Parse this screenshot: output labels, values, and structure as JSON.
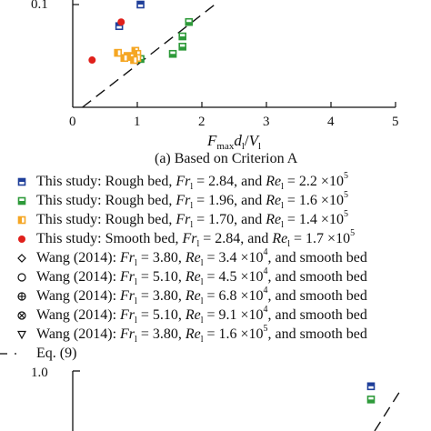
{
  "chart_data": [
    {
      "type": "scatter",
      "caption": "(a) Based on Criterion A",
      "xlabel": "F_max d_l/V_l",
      "xlim": [
        0,
        5
      ],
      "ylim": [
        0,
        0.1
      ],
      "x_ticks": [
        "0",
        "1",
        "2",
        "3",
        "4",
        "5"
      ],
      "y_ticks": [
        "0.1"
      ],
      "series": [
        {
          "name": "This study: Rough bed, Fr_l = 2.84, and Re_l = 2.2 × 10^5",
          "marker": "square-top-half",
          "color": "#1f3f9a",
          "points": [
            [
              1.05,
              0.1
            ],
            [
              0.72,
              0.079
            ]
          ]
        },
        {
          "name": "This study: Rough bed, Fr_l = 1.96, and Re_l = 1.6 × 10^5",
          "marker": "square-bottom-half",
          "color": "#2e9a3a",
          "points": [
            [
              1.8,
              0.083
            ],
            [
              1.7,
              0.069
            ],
            [
              1.7,
              0.059
            ],
            [
              1.55,
              0.052
            ],
            [
              1.05,
              0.047
            ]
          ]
        },
        {
          "name": "This study: Rough bed, Fr_l = 1.70, and Re_l = 1.4 × 10^5",
          "marker": "square-left-half",
          "color": "#f5a623",
          "points": [
            [
              0.7,
              0.053
            ],
            [
              0.85,
              0.05
            ],
            [
              0.97,
              0.055
            ],
            [
              1.0,
              0.052
            ],
            [
              0.9,
              0.049
            ],
            [
              0.8,
              0.048
            ],
            [
              1.0,
              0.048
            ],
            [
              0.95,
              0.046
            ]
          ]
        },
        {
          "name": "This study: Smooth bed, Fr_l = 2.84, and Re_l = 1.7 × 10^5",
          "marker": "circle-filled",
          "color": "#e0201b",
          "points": [
            [
              0.3,
              0.046
            ],
            [
              0.75,
              0.083
            ]
          ]
        }
      ],
      "legend_extra": [
        {
          "marker": "diamond-open",
          "text": "Wang (2014): Fr_l = 3.80, Re_l = 3.4 × 10^4, and smooth bed"
        },
        {
          "marker": "circle-open",
          "text": "Wang (2014): Fr_l = 5.10, Re_l = 4.5 × 10^4, and smooth bed"
        },
        {
          "marker": "circle-plus",
          "text": "Wang (2014): Fr_l = 3.80, Re_l = 6.8 × 10^4, and smooth bed"
        },
        {
          "marker": "circle-x",
          "text": "Wang (2014): Fr_l = 5.10, Re_l = 9.1 × 10^4, and smooth bed"
        },
        {
          "marker": "triangle-down-open",
          "text": "Wang (2014): Fr_l = 3.80, Re_l = 1.6 × 10^5, and smooth bed"
        },
        {
          "marker": "dash-line",
          "text": "Eq. (9)"
        }
      ],
      "reference_line": {
        "name": "Eq. (9)",
        "style": "dashed",
        "points": [
          [
            0.15,
            0.0
          ],
          [
            2.2,
            0.1
          ]
        ]
      }
    },
    {
      "type": "scatter",
      "ylim": [
        0,
        1.0
      ],
      "y_ticks": [
        "1.0"
      ],
      "series": [
        {
          "name": "This study: Rough bed, Fr_l = 2.84, and Re_l = 2.2 × 10^5",
          "marker": "square-top-half",
          "color": "#1f3f9a",
          "points": [
            [
              0.82,
              0.85
            ]
          ]
        },
        {
          "name": "This study: Rough bed, Fr_l = 1.96, and Re_l = 1.6 × 10^5",
          "marker": "square-bottom-half",
          "color": "#2e9a3a",
          "points": [
            [
              0.82,
              0.72
            ]
          ]
        }
      ],
      "reference_line": {
        "name": "Eq. (9)",
        "style": "dashed"
      }
    }
  ],
  "legend_labels": [
    {
      "pre": "This study: Rough bed, ",
      "a": "Fr",
      "as": "l",
      "mid": " = 2.84, and ",
      "b": "Re",
      "bs": "l",
      "post": " = 2.2 ×10",
      "exp": "5"
    },
    {
      "pre": "This study: Rough bed, ",
      "a": "Fr",
      "as": "l",
      "mid": " = 1.96, and ",
      "b": "Re",
      "bs": "l",
      "post": " = 1.6 ×10",
      "exp": "5"
    },
    {
      "pre": "This study: Rough bed, ",
      "a": "Fr",
      "as": "l",
      "mid": " = 1.70, and ",
      "b": "Re",
      "bs": "l",
      "post": " = 1.4 ×10",
      "exp": "5"
    },
    {
      "pre": "This study: Smooth bed, ",
      "a": "Fr",
      "as": "l",
      "mid": " = 2.84, and ",
      "b": "Re",
      "bs": "l",
      "post": " = 1.7 ×10",
      "exp": "5"
    },
    {
      "pre": "Wang (2014): ",
      "a": "Fr",
      "as": "l",
      "mid": " = 3.80, ",
      "b": "Re",
      "bs": "l",
      "post": " = 3.4 ×10",
      "exp": "4",
      "tail": ", and smooth bed"
    },
    {
      "pre": "Wang (2014): ",
      "a": "Fr",
      "as": "l",
      "mid": " = 5.10, ",
      "b": "Re",
      "bs": "l",
      "post": " = 4.5 ×10",
      "exp": "4",
      "tail": ", and smooth bed"
    },
    {
      "pre": "Wang (2014): ",
      "a": "Fr",
      "as": "l",
      "mid": " = 3.80, ",
      "b": "Re",
      "bs": "l",
      "post": " = 6.8 ×10",
      "exp": "4",
      "tail": ", and smooth bed"
    },
    {
      "pre": "Wang (2014): ",
      "a": "Fr",
      "as": "l",
      "mid": " = 5.10, ",
      "b": "Re",
      "bs": "l",
      "post": " = 9.1 ×10",
      "exp": "4",
      "tail": ", and smooth bed"
    },
    {
      "pre": "Wang (2014): ",
      "a": "Fr",
      "as": "l",
      "mid": " = 3.80, ",
      "b": "Re",
      "bs": "l",
      "post": " = 1.6 ×10",
      "exp": "5",
      "tail": ", and smooth bed"
    },
    {
      "pre": "Eq. (9)"
    }
  ]
}
